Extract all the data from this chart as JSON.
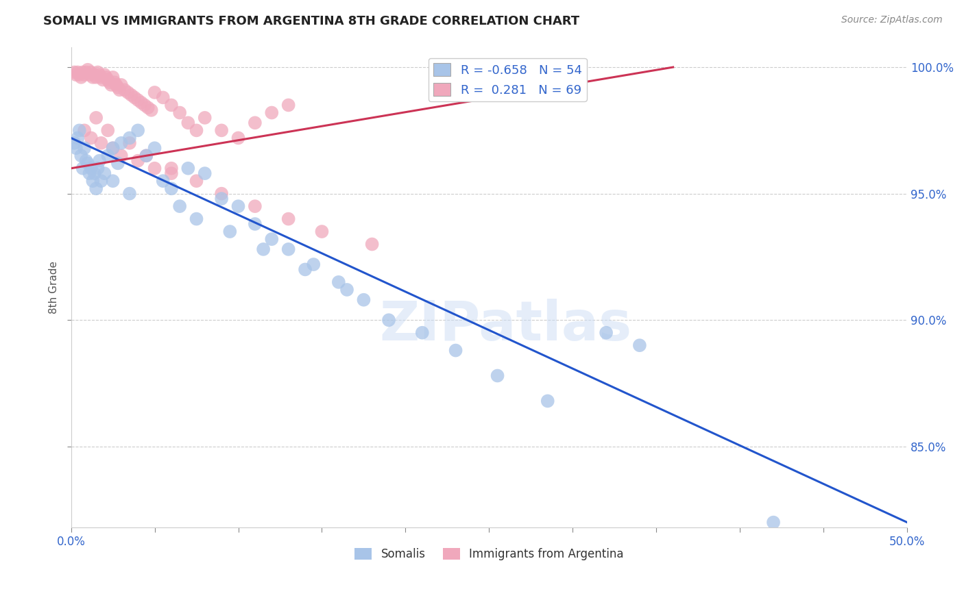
{
  "title": "SOMALI VS IMMIGRANTS FROM ARGENTINA 8TH GRADE CORRELATION CHART",
  "source": "Source: ZipAtlas.com",
  "ylabel": "8th Grade",
  "xlim": [
    0.0,
    0.5
  ],
  "ylim": [
    0.818,
    1.008
  ],
  "ytick_positions": [
    0.85,
    0.9,
    0.95,
    1.0
  ],
  "ytick_labels_right": [
    "85.0%",
    "90.0%",
    "95.0%",
    "100.0%"
  ],
  "xtick_positions": [
    0.0,
    0.05,
    0.1,
    0.15,
    0.2,
    0.25,
    0.3,
    0.35,
    0.4,
    0.45,
    0.5
  ],
  "xtick_labels": [
    "0.0%",
    "",
    "",
    "",
    "",
    "",
    "",
    "",
    "",
    "",
    "50.0%"
  ],
  "legend_R_blue": "-0.658",
  "legend_N_blue": "54",
  "legend_R_pink": "0.281",
  "legend_N_pink": "69",
  "blue_color": "#a8c4e8",
  "pink_color": "#f0a8bc",
  "line_blue_color": "#2255cc",
  "line_pink_color": "#cc3355",
  "blue_line_x0": 0.0,
  "blue_line_y0": 0.972,
  "blue_line_x1": 0.5,
  "blue_line_y1": 0.82,
  "pink_line_x0": 0.0,
  "pink_line_y0": 0.96,
  "pink_line_x1": 0.36,
  "pink_line_y1": 1.0,
  "watermark": "ZIPatlas",
  "somali_label": "Somalis",
  "argentina_label": "Immigrants from Argentina",
  "blue_points_x": [
    0.002,
    0.003,
    0.004,
    0.005,
    0.006,
    0.007,
    0.008,
    0.009,
    0.01,
    0.011,
    0.012,
    0.013,
    0.014,
    0.015,
    0.016,
    0.017,
    0.018,
    0.02,
    0.022,
    0.025,
    0.028,
    0.03,
    0.035,
    0.04,
    0.045,
    0.05,
    0.055,
    0.06,
    0.07,
    0.08,
    0.09,
    0.1,
    0.11,
    0.12,
    0.13,
    0.145,
    0.16,
    0.175,
    0.19,
    0.21,
    0.23,
    0.255,
    0.285,
    0.025,
    0.035,
    0.065,
    0.075,
    0.095,
    0.115,
    0.14,
    0.165,
    0.32,
    0.34,
    0.42
  ],
  "blue_points_y": [
    0.97,
    0.968,
    0.972,
    0.975,
    0.965,
    0.96,
    0.968,
    0.963,
    0.962,
    0.958,
    0.96,
    0.955,
    0.958,
    0.952,
    0.96,
    0.963,
    0.955,
    0.958,
    0.965,
    0.968,
    0.962,
    0.97,
    0.972,
    0.975,
    0.965,
    0.968,
    0.955,
    0.952,
    0.96,
    0.958,
    0.948,
    0.945,
    0.938,
    0.932,
    0.928,
    0.922,
    0.915,
    0.908,
    0.9,
    0.895,
    0.888,
    0.878,
    0.868,
    0.955,
    0.95,
    0.945,
    0.94,
    0.935,
    0.928,
    0.92,
    0.912,
    0.895,
    0.89,
    0.82
  ],
  "pink_points_x": [
    0.002,
    0.003,
    0.004,
    0.005,
    0.006,
    0.007,
    0.008,
    0.009,
    0.01,
    0.011,
    0.012,
    0.013,
    0.014,
    0.015,
    0.016,
    0.017,
    0.018,
    0.019,
    0.02,
    0.021,
    0.022,
    0.023,
    0.024,
    0.025,
    0.026,
    0.027,
    0.028,
    0.029,
    0.03,
    0.032,
    0.034,
    0.036,
    0.038,
    0.04,
    0.042,
    0.044,
    0.046,
    0.048,
    0.05,
    0.055,
    0.06,
    0.065,
    0.07,
    0.075,
    0.08,
    0.09,
    0.1,
    0.11,
    0.12,
    0.13,
    0.008,
    0.012,
    0.018,
    0.025,
    0.03,
    0.04,
    0.05,
    0.06,
    0.075,
    0.09,
    0.11,
    0.13,
    0.15,
    0.18,
    0.015,
    0.022,
    0.035,
    0.045,
    0.06
  ],
  "pink_points_y": [
    0.998,
    0.997,
    0.998,
    0.997,
    0.996,
    0.998,
    0.997,
    0.998,
    0.999,
    0.997,
    0.998,
    0.996,
    0.997,
    0.996,
    0.998,
    0.997,
    0.996,
    0.995,
    0.997,
    0.996,
    0.995,
    0.994,
    0.993,
    0.996,
    0.994,
    0.993,
    0.992,
    0.991,
    0.993,
    0.991,
    0.99,
    0.989,
    0.988,
    0.987,
    0.986,
    0.985,
    0.984,
    0.983,
    0.99,
    0.988,
    0.985,
    0.982,
    0.978,
    0.975,
    0.98,
    0.975,
    0.972,
    0.978,
    0.982,
    0.985,
    0.975,
    0.972,
    0.97,
    0.968,
    0.965,
    0.963,
    0.96,
    0.958,
    0.955,
    0.95,
    0.945,
    0.94,
    0.935,
    0.93,
    0.98,
    0.975,
    0.97,
    0.965,
    0.96
  ]
}
